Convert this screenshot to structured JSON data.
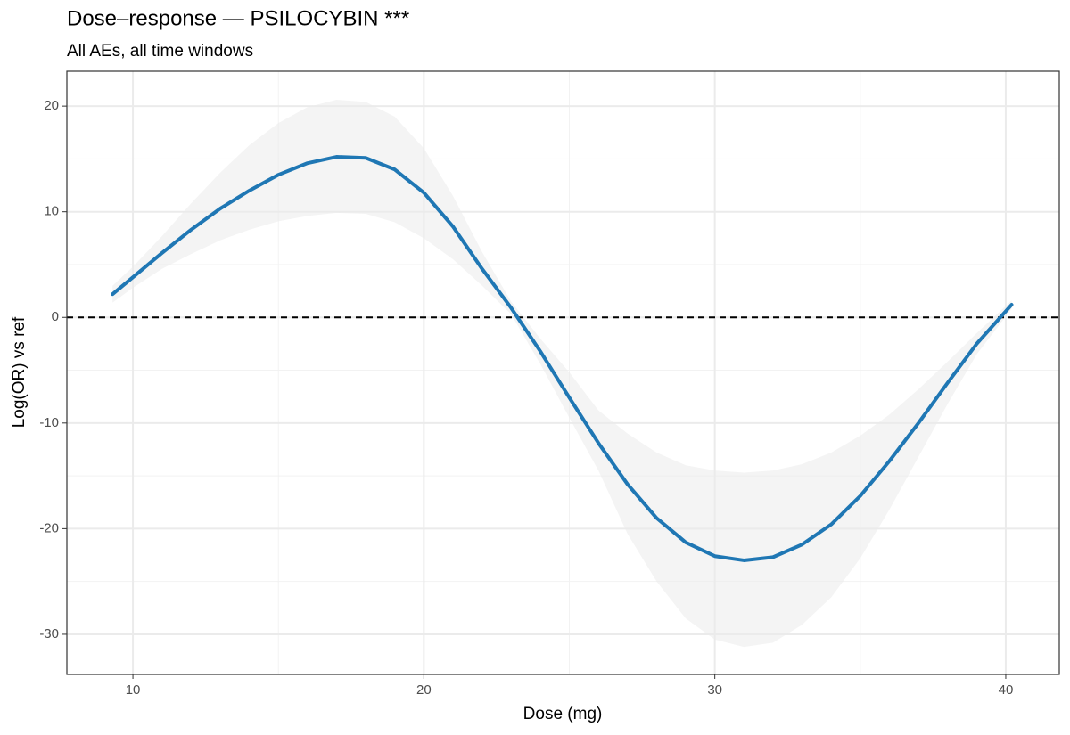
{
  "chart_data": {
    "type": "line",
    "title": "Dose–response — PSILOCYBIN ***",
    "subtitle": "All AEs, all time windows",
    "x_label": "Dose (mg)",
    "y_label": "Log(OR) vs ref",
    "x": [
      9.3,
      10,
      11,
      12,
      13,
      14,
      15,
      16,
      17,
      18,
      19,
      20,
      21,
      22,
      23,
      24,
      25,
      26,
      27,
      28,
      29,
      30,
      31,
      32,
      33,
      34,
      35,
      36,
      37,
      38,
      39,
      40.2
    ],
    "values": [
      2.2,
      3.8,
      6.1,
      8.3,
      10.3,
      12.0,
      13.5,
      14.6,
      15.2,
      15.1,
      14.0,
      11.8,
      8.6,
      4.6,
      0.9,
      -3.2,
      -7.6,
      -11.9,
      -15.8,
      -19.0,
      -21.3,
      -22.6,
      -23.0,
      -22.7,
      -21.5,
      -19.6,
      -16.9,
      -13.6,
      -10.0,
      -6.2,
      -2.5,
      1.2
    ],
    "upper": [
      3.0,
      4.8,
      7.7,
      10.8,
      13.7,
      16.3,
      18.4,
      19.9,
      20.6,
      20.4,
      19.0,
      16.0,
      11.5,
      6.2,
      1.5,
      -2.0,
      -5.2,
      -8.8,
      -11.0,
      -12.8,
      -14.0,
      -14.5,
      -14.7,
      -14.5,
      -13.9,
      -12.8,
      -11.2,
      -9.2,
      -6.8,
      -4.2,
      -1.5,
      1.6
    ],
    "lower": [
      1.4,
      2.8,
      4.6,
      6.0,
      7.3,
      8.3,
      9.1,
      9.6,
      9.9,
      9.8,
      9.0,
      7.5,
      5.5,
      3.0,
      0.3,
      -4.4,
      -9.5,
      -14.5,
      -20.5,
      -25.0,
      -28.5,
      -30.5,
      -31.2,
      -30.8,
      -29.1,
      -26.5,
      -22.8,
      -18.2,
      -13.2,
      -8.2,
      -3.5,
      0.8
    ],
    "color": "#1f77b4",
    "band_color": "#ebebeb",
    "reference_line": 0,
    "xlim": [
      7.73,
      41.84
    ],
    "ylim": [
      -33.8,
      23.3
    ],
    "xticks": [
      10,
      20,
      30,
      40
    ],
    "yticks": [
      -30,
      -20,
      -10,
      0,
      10,
      20
    ],
    "x_minor_ticks": [
      15,
      25,
      35
    ],
    "y_minor_ticks": [
      -25,
      -15,
      -5,
      5,
      15
    ],
    "grid": true
  }
}
